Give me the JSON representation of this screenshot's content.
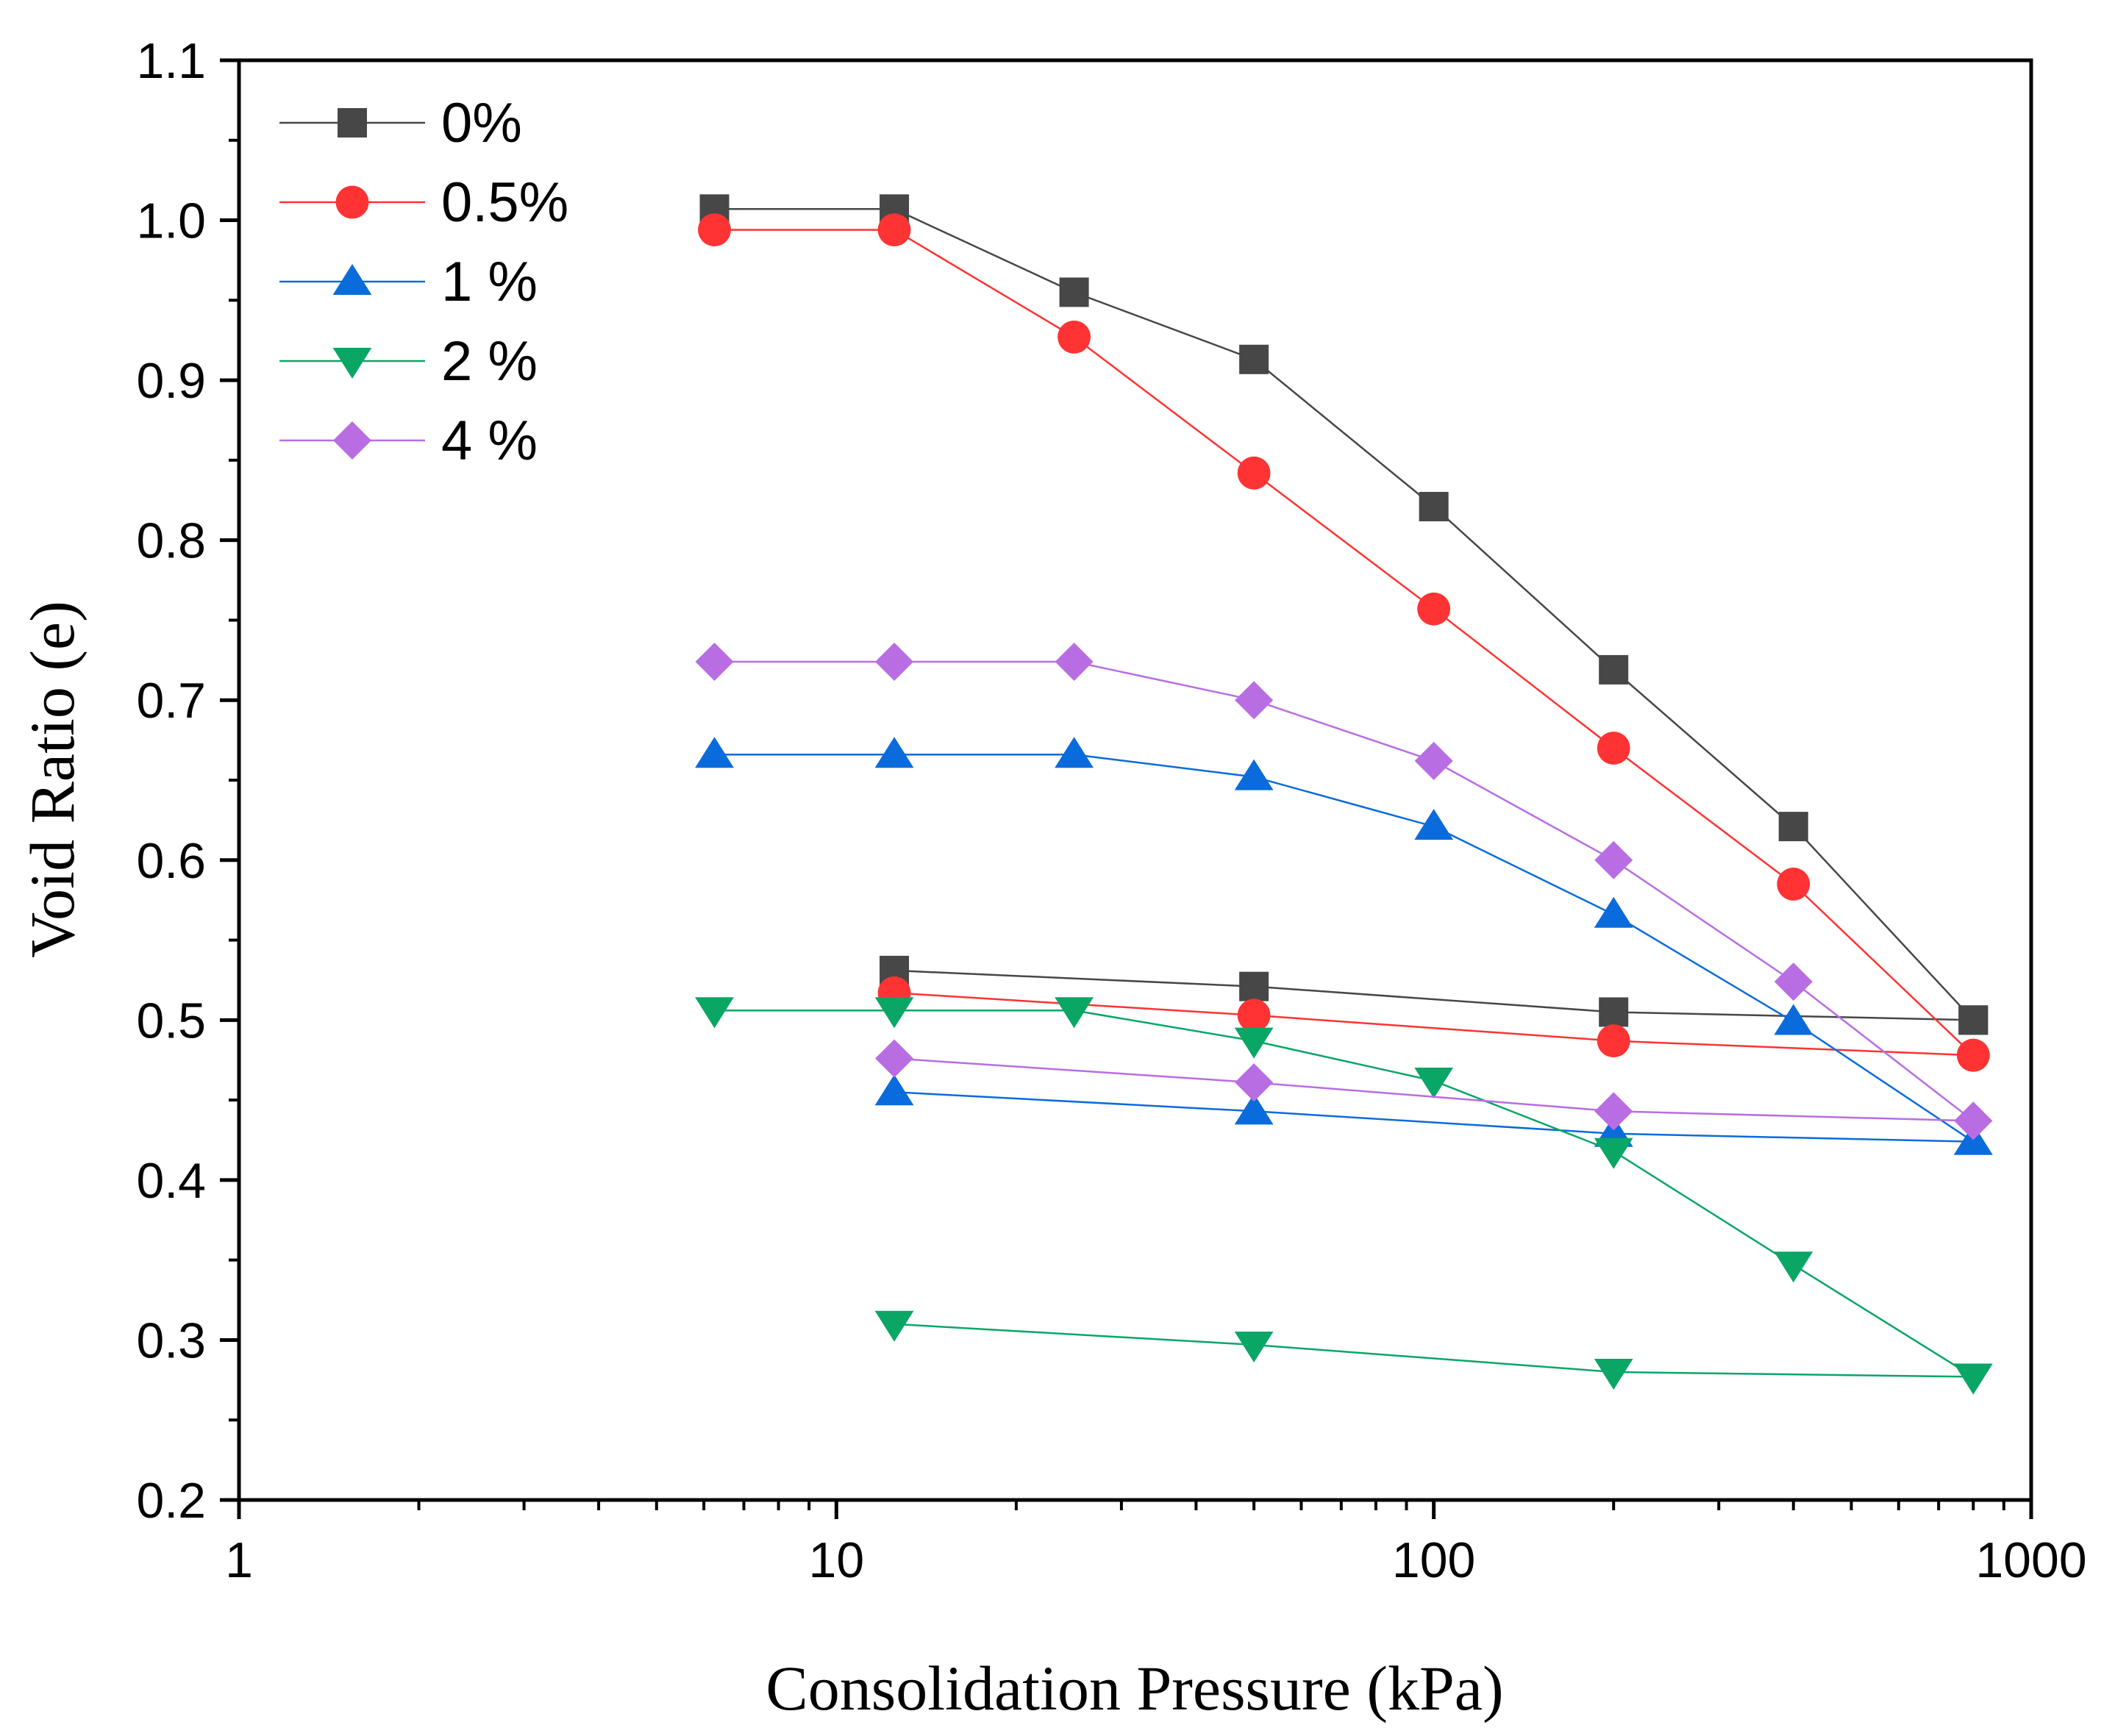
{
  "chart_data": {
    "type": "line",
    "title": "",
    "xlabel": "Consolidation Pressure (kPa)",
    "ylabel": "Void Ratio (e)",
    "xscale": "log",
    "xlim": [
      1,
      1000
    ],
    "ylim": [
      0.2,
      1.1
    ],
    "xticks": [
      {
        "value": 1,
        "label": "1"
      },
      {
        "value": 10,
        "label": "10"
      },
      {
        "value": 100,
        "label": "100"
      },
      {
        "value": 1000,
        "label": "1000"
      }
    ],
    "yticks": [
      {
        "value": 0.2,
        "label": "0.2"
      },
      {
        "value": 0.3,
        "label": "0.3"
      },
      {
        "value": 0.4,
        "label": "0.4"
      },
      {
        "value": 0.5,
        "label": "0.5"
      },
      {
        "value": 0.6,
        "label": "0.6"
      },
      {
        "value": 0.7,
        "label": "0.7"
      },
      {
        "value": 0.8,
        "label": "0.8"
      },
      {
        "value": 0.9,
        "label": "0.9"
      },
      {
        "value": 1.0,
        "label": "1.0"
      },
      {
        "value": 1.1,
        "label": "1.1"
      }
    ],
    "grid": false,
    "legend_position": "top-left",
    "series": [
      {
        "name": "0%",
        "color": "#474747",
        "marker": "square",
        "loading": {
          "x": [
            6.25,
            12.5,
            25,
            50,
            100,
            200,
            400,
            800
          ],
          "y": [
            1.007,
            1.007,
            0.955,
            0.913,
            0.821,
            0.719,
            0.621,
            0.5
          ]
        },
        "unloading": {
          "x": [
            800,
            200,
            50,
            12.5
          ],
          "y": [
            0.5,
            0.505,
            0.521,
            0.531
          ]
        }
      },
      {
        "name": "0.5%",
        "color": "#ff3333",
        "marker": "circle",
        "loading": {
          "x": [
            6.25,
            12.5,
            25,
            50,
            100,
            200,
            400,
            800
          ],
          "y": [
            0.994,
            0.994,
            0.927,
            0.842,
            0.757,
            0.67,
            0.585,
            0.478
          ]
        },
        "unloading": {
          "x": [
            800,
            200,
            50,
            12.5
          ],
          "y": [
            0.478,
            0.487,
            0.503,
            0.517
          ]
        }
      },
      {
        "name": "1 %",
        "color": "#0a6bdc",
        "marker": "triangle-up",
        "loading": {
          "x": [
            6.25,
            12.5,
            25,
            50,
            100,
            200,
            400,
            800
          ],
          "y": [
            0.666,
            0.666,
            0.666,
            0.652,
            0.621,
            0.566,
            0.499,
            0.424
          ]
        },
        "unloading": {
          "x": [
            800,
            200,
            50,
            12.5
          ],
          "y": [
            0.424,
            0.429,
            0.443,
            0.455
          ]
        }
      },
      {
        "name": "2 %",
        "color": "#0aa666",
        "marker": "triangle-down",
        "loading": {
          "x": [
            6.25,
            12.5,
            25,
            50,
            100,
            200,
            400,
            800
          ],
          "y": [
            0.506,
            0.506,
            0.506,
            0.487,
            0.462,
            0.418,
            0.347,
            0.277
          ]
        },
        "unloading": {
          "x": [
            800,
            200,
            50,
            12.5
          ],
          "y": [
            0.277,
            0.28,
            0.297,
            0.31
          ]
        }
      },
      {
        "name": "4 %",
        "color": "#b96de3",
        "marker": "diamond",
        "loading": {
          "x": [
            6.25,
            12.5,
            25,
            50,
            100,
            200,
            400,
            800
          ],
          "y": [
            0.724,
            0.724,
            0.724,
            0.7,
            0.662,
            0.6,
            0.524,
            0.437
          ]
        },
        "unloading": {
          "x": [
            800,
            200,
            50,
            12.5
          ],
          "y": [
            0.437,
            0.443,
            0.461,
            0.476
          ]
        }
      }
    ]
  }
}
